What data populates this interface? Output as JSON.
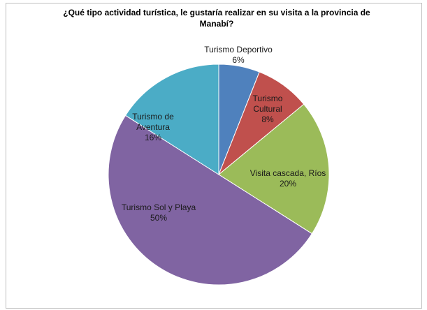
{
  "chart_data": {
    "type": "pie",
    "title": "¿Qué tipo actividad turística, le gustaría realizar en su visita a la provincia de Manabí?",
    "categories": [
      "Turismo Deportivo",
      "Turismo Cultural",
      "Visita cascada, Ríos",
      "Turismo Sol y Playa",
      "Turismo de Aventura"
    ],
    "values": [
      6,
      8,
      20,
      50,
      16
    ],
    "value_labels": [
      "6%",
      "8%",
      "20%",
      "50%",
      "16%"
    ],
    "colors": [
      "#4f81bd",
      "#c0504d",
      "#9bbb59",
      "#8064a2",
      "#4bacc6"
    ]
  }
}
